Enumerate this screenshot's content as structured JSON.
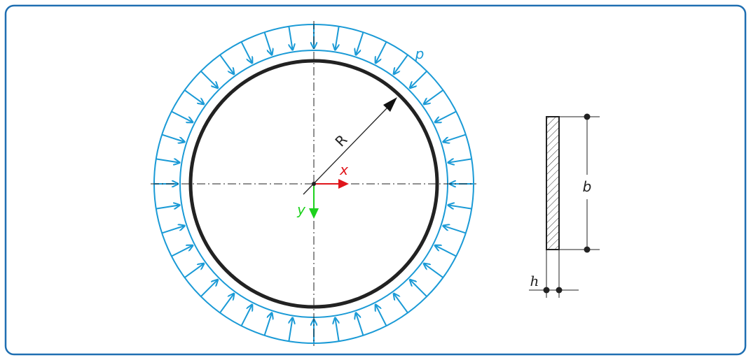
{
  "labels": {
    "pressure": "p",
    "radius": "R",
    "x_axis": "x",
    "y_axis": "y",
    "width": "b",
    "thickness": "h"
  }
}
